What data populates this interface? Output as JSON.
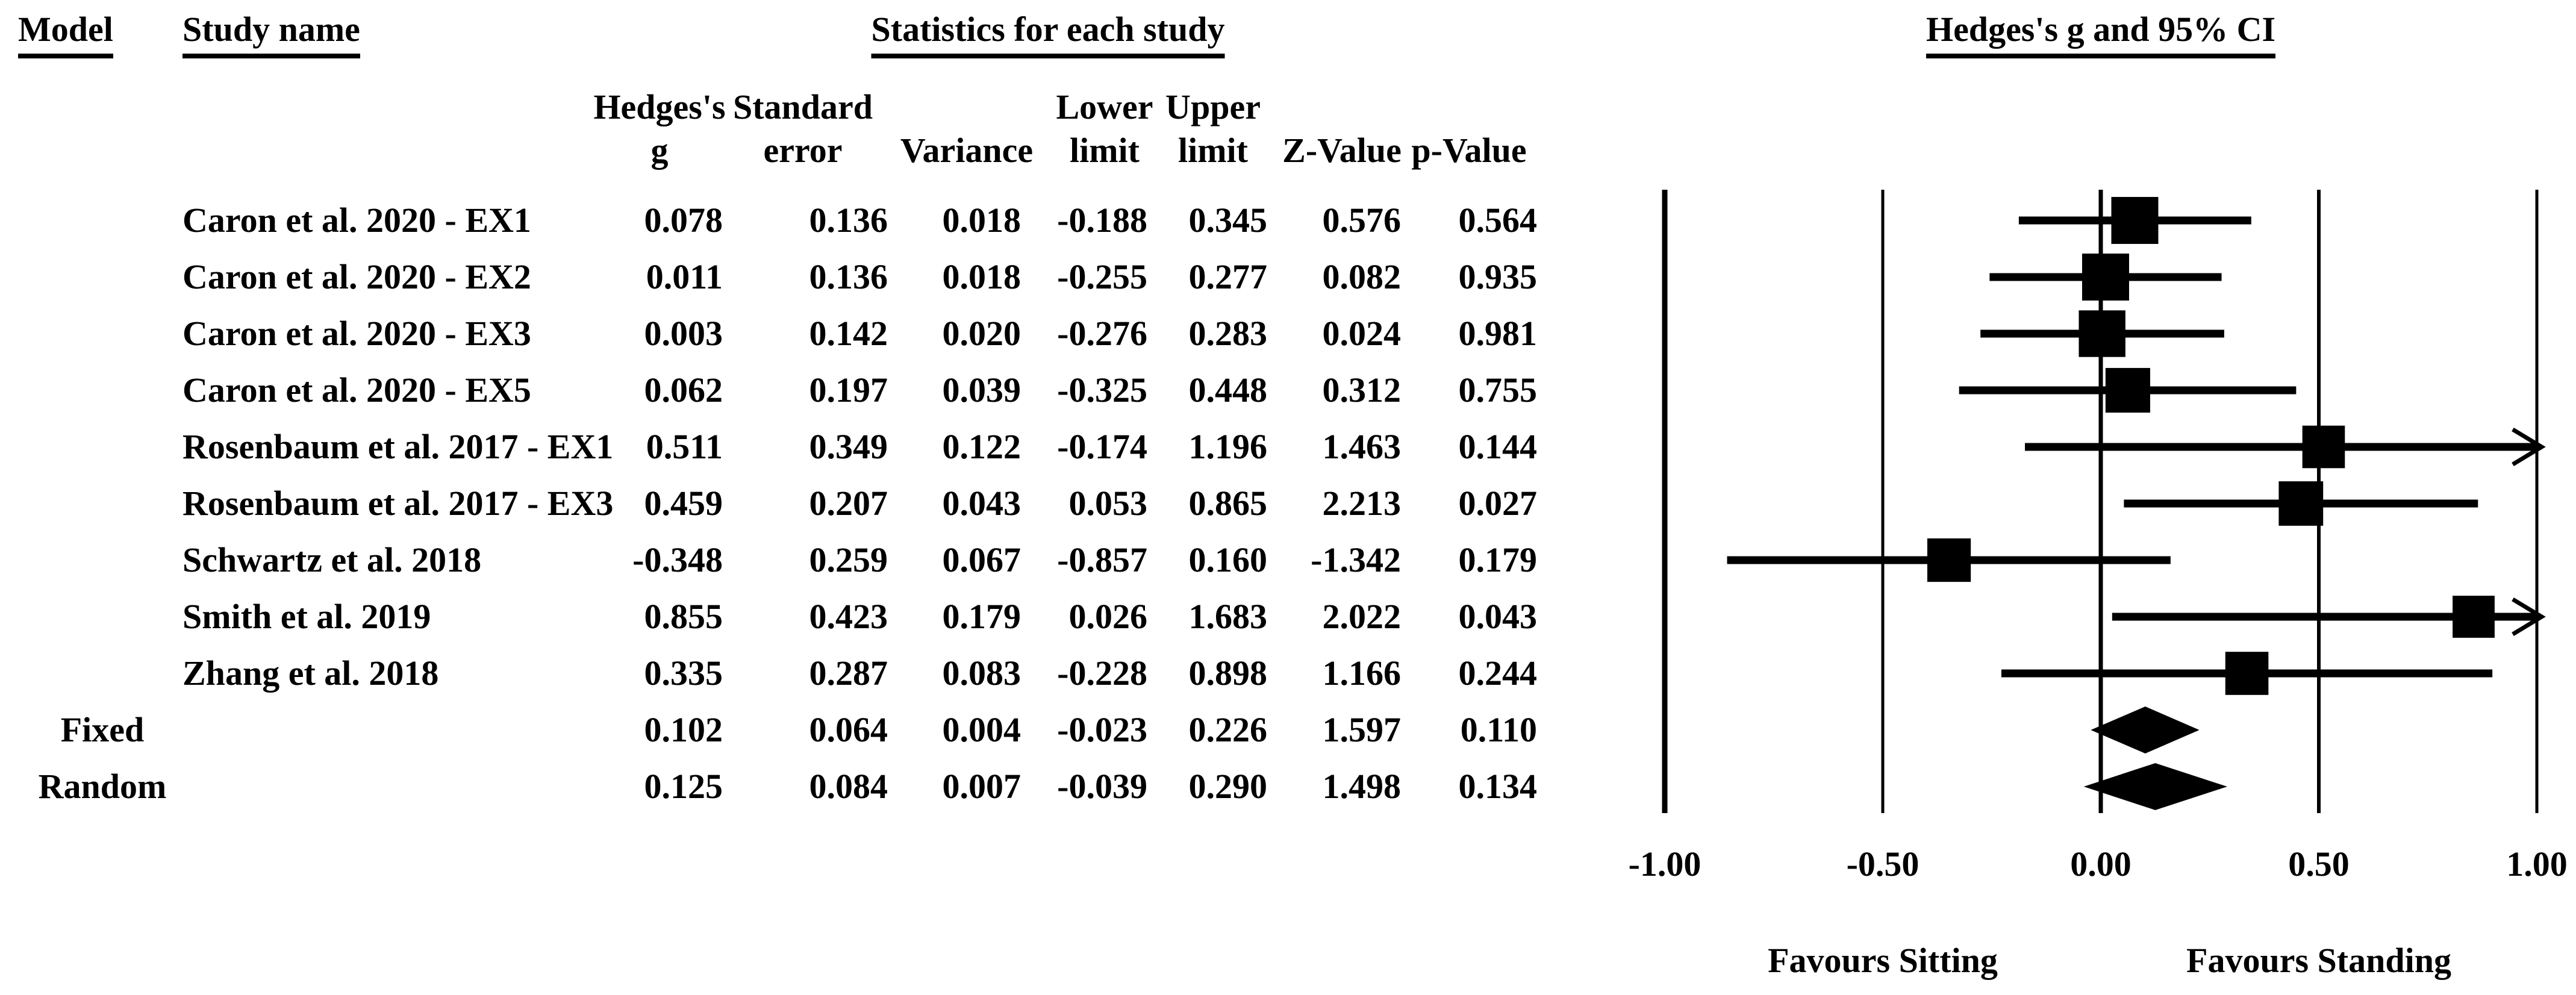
{
  "table": {
    "headers": {
      "model": "Model",
      "study_name": "Study name",
      "stats_group": "Statistics for each study"
    },
    "stat_columns": [
      {
        "line1": "Hedges's",
        "line2": "g"
      },
      {
        "line1": "Standard",
        "line2": "error"
      },
      {
        "line1": "",
        "line2": "Variance"
      },
      {
        "line1": "Lower",
        "line2": "limit"
      },
      {
        "line1": "Upper",
        "line2": "limit"
      },
      {
        "line1": "",
        "line2": "Z-Value"
      },
      {
        "line1": "",
        "line2": "p-Value"
      }
    ],
    "rows": [
      {
        "model": "",
        "study": "Caron et al. 2020 - EX1",
        "g": "0.078",
        "se": "0.136",
        "variance": "0.018",
        "lower": "-0.188",
        "upper": "0.345",
        "z": "0.576",
        "p": "0.564"
      },
      {
        "model": "",
        "study": "Caron et al. 2020 - EX2",
        "g": "0.011",
        "se": "0.136",
        "variance": "0.018",
        "lower": "-0.255",
        "upper": "0.277",
        "z": "0.082",
        "p": "0.935"
      },
      {
        "model": "",
        "study": "Caron et al. 2020 - EX3",
        "g": "0.003",
        "se": "0.142",
        "variance": "0.020",
        "lower": "-0.276",
        "upper": "0.283",
        "z": "0.024",
        "p": "0.981"
      },
      {
        "model": "",
        "study": "Caron et al. 2020 - EX5",
        "g": "0.062",
        "se": "0.197",
        "variance": "0.039",
        "lower": "-0.325",
        "upper": "0.448",
        "z": "0.312",
        "p": "0.755"
      },
      {
        "model": "",
        "study": "Rosenbaum et al. 2017 - EX1",
        "g": "0.511",
        "se": "0.349",
        "variance": "0.122",
        "lower": "-0.174",
        "upper": "1.196",
        "z": "1.463",
        "p": "0.144"
      },
      {
        "model": "",
        "study": "Rosenbaum et al. 2017 - EX3",
        "g": "0.459",
        "se": "0.207",
        "variance": "0.043",
        "lower": "0.053",
        "upper": "0.865",
        "z": "2.213",
        "p": "0.027"
      },
      {
        "model": "",
        "study": "Schwartz et al. 2018",
        "g": "-0.348",
        "se": "0.259",
        "variance": "0.067",
        "lower": "-0.857",
        "upper": "0.160",
        "z": "-1.342",
        "p": "0.179"
      },
      {
        "model": "",
        "study": "Smith et al. 2019",
        "g": "0.855",
        "se": "0.423",
        "variance": "0.179",
        "lower": "0.026",
        "upper": "1.683",
        "z": "2.022",
        "p": "0.043"
      },
      {
        "model": "",
        "study": "Zhang et al. 2018",
        "g": "0.335",
        "se": "0.287",
        "variance": "0.083",
        "lower": "-0.228",
        "upper": "0.898",
        "z": "1.166",
        "p": "0.244"
      },
      {
        "model": "Fixed",
        "study": "",
        "g": "0.102",
        "se": "0.064",
        "variance": "0.004",
        "lower": "-0.023",
        "upper": "0.226",
        "z": "1.597",
        "p": "0.110"
      },
      {
        "model": "Random",
        "study": "",
        "g": "0.125",
        "se": "0.084",
        "variance": "0.007",
        "lower": "-0.039",
        "upper": "0.290",
        "z": "1.498",
        "p": "0.134"
      }
    ]
  },
  "plot": {
    "title": "Hedges's g and 95% CI",
    "x_tick_labels": [
      "-1.00",
      "-0.50",
      "0.00",
      "0.50",
      "1.00"
    ],
    "footer_left": "Favours Sitting",
    "footer_right": "Favours Standing"
  },
  "colors": {
    "ink": "#000000",
    "background": "#ffffff"
  },
  "chart_data": {
    "type": "scatter",
    "subtype": "forest_plot",
    "title": "Hedges's g and 95% CI",
    "effect_measure": "Hedges's g",
    "xlim": [
      -1.0,
      1.0
    ],
    "x_ticks": [
      -1.0,
      -0.5,
      0.0,
      0.5,
      1.0
    ],
    "grid": "vertical-reference-lines",
    "footer_left": "Favours Sitting",
    "footer_right": "Favours Standing",
    "studies": [
      {
        "name": "Caron et al. 2020 - EX1",
        "g": 0.078,
        "se": 0.136,
        "variance": 0.018,
        "lower": -0.188,
        "upper": 0.345,
        "z": 0.576,
        "p": 0.564
      },
      {
        "name": "Caron et al. 2020 - EX2",
        "g": 0.011,
        "se": 0.136,
        "variance": 0.018,
        "lower": -0.255,
        "upper": 0.277,
        "z": 0.082,
        "p": 0.935
      },
      {
        "name": "Caron et al. 2020 - EX3",
        "g": 0.003,
        "se": 0.142,
        "variance": 0.02,
        "lower": -0.276,
        "upper": 0.283,
        "z": 0.024,
        "p": 0.981
      },
      {
        "name": "Caron et al. 2020 - EX5",
        "g": 0.062,
        "se": 0.197,
        "variance": 0.039,
        "lower": -0.325,
        "upper": 0.448,
        "z": 0.312,
        "p": 0.755
      },
      {
        "name": "Rosenbaum et al. 2017 - EX1",
        "g": 0.511,
        "se": 0.349,
        "variance": 0.122,
        "lower": -0.174,
        "upper": 1.196,
        "z": 1.463,
        "p": 0.144
      },
      {
        "name": "Rosenbaum et al. 2017 - EX3",
        "g": 0.459,
        "se": 0.207,
        "variance": 0.043,
        "lower": 0.053,
        "upper": 0.865,
        "z": 2.213,
        "p": 0.027
      },
      {
        "name": "Schwartz et al. 2018",
        "g": -0.348,
        "se": 0.259,
        "variance": 0.067,
        "lower": -0.857,
        "upper": 0.16,
        "z": -1.342,
        "p": 0.179
      },
      {
        "name": "Smith et al. 2019",
        "g": 0.855,
        "se": 0.423,
        "variance": 0.179,
        "lower": 0.026,
        "upper": 1.683,
        "z": 2.022,
        "p": 0.043
      },
      {
        "name": "Zhang et al. 2018",
        "g": 0.335,
        "se": 0.287,
        "variance": 0.083,
        "lower": -0.228,
        "upper": 0.898,
        "z": 1.166,
        "p": 0.244
      }
    ],
    "summaries": [
      {
        "model": "Fixed",
        "g": 0.102,
        "se": 0.064,
        "variance": 0.004,
        "lower": -0.023,
        "upper": 0.226,
        "z": 1.597,
        "p": 0.11
      },
      {
        "model": "Random",
        "g": 0.125,
        "se": 0.084,
        "variance": 0.007,
        "lower": -0.039,
        "upper": 0.29,
        "z": 1.498,
        "p": 0.134
      }
    ],
    "clipped_right_arrow_studies": [
      "Rosenbaum et al. 2017 - EX1",
      "Smith et al. 2019"
    ]
  }
}
